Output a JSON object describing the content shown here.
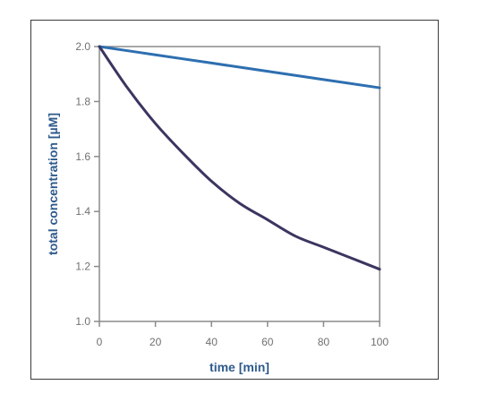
{
  "chart_data": {
    "type": "line",
    "xlabel": "time [min]",
    "ylabel": "total concentration [µM]",
    "xlim": [
      0,
      100
    ],
    "ylim": [
      1.0,
      2.0
    ],
    "xticks": [
      0,
      20,
      40,
      60,
      80,
      100
    ],
    "yticks": [
      1.0,
      1.2,
      1.4,
      1.6,
      1.8,
      2.0
    ],
    "xtick_labels": [
      "0",
      "20",
      "40",
      "60",
      "80",
      "100"
    ],
    "ytick_labels": [
      "1.0",
      "1.2",
      "1.4",
      "1.6",
      "1.8",
      "2.0"
    ],
    "grid": false,
    "legend": "none",
    "series": [
      {
        "color": "#2e6fb0",
        "x": [
          0,
          20,
          40,
          60,
          80,
          100
        ],
        "y": [
          2.0,
          1.97,
          1.94,
          1.91,
          1.88,
          1.85
        ]
      },
      {
        "color": "#3b3560",
        "x": [
          0,
          10,
          20,
          30,
          40,
          50,
          60,
          70,
          80,
          90,
          100
        ],
        "y": [
          2.0,
          1.85,
          1.72,
          1.61,
          1.51,
          1.43,
          1.37,
          1.31,
          1.27,
          1.23,
          1.19
        ]
      }
    ],
    "colors": {
      "axis": "#8a8a8a",
      "ticks_text": "#707070",
      "axis_title": "#2e5a8c"
    }
  }
}
